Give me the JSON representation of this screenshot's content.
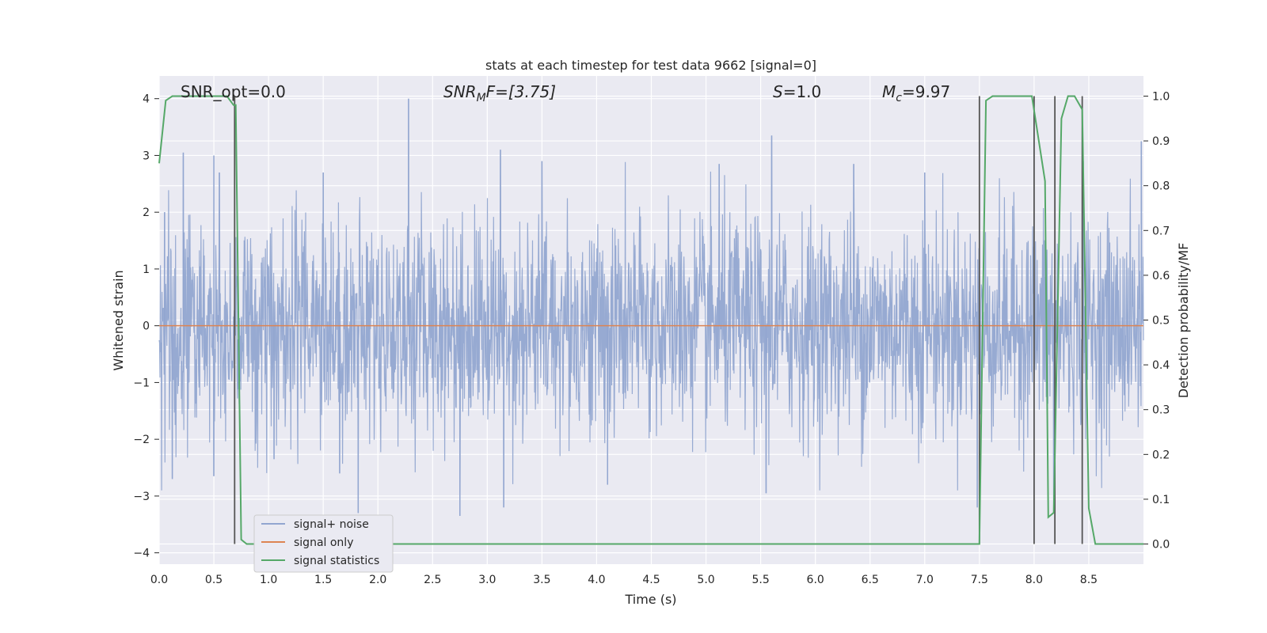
{
  "chart_data": {
    "type": "line",
    "title": "stats at each timestep for test data 9662 [signal=0]",
    "xlabel": "Time (s)",
    "ylabel": "Whitened strain",
    "y2label": "Detection probability/MF",
    "xlim": [
      0.0,
      9.0
    ],
    "ylim": [
      -4.2,
      4.4
    ],
    "y2lim": [
      -0.045,
      1.045
    ],
    "x_ticks": [
      0.0,
      0.5,
      1.0,
      1.5,
      2.0,
      2.5,
      3.0,
      3.5,
      4.0,
      4.5,
      5.0,
      5.5,
      6.0,
      6.5,
      7.0,
      7.5,
      8.0,
      8.5
    ],
    "x_tick_labels": [
      "0.0",
      "0.5",
      "1.0",
      "1.5",
      "2.0",
      "2.5",
      "3.0",
      "3.5",
      "4.0",
      "4.5",
      "5.0",
      "5.5",
      "6.0",
      "6.5",
      "7.0",
      "7.5",
      "8.0",
      "8.5"
    ],
    "y_ticks": [
      4,
      3,
      2,
      1,
      0,
      -1,
      -2,
      -3,
      -4
    ],
    "y_tick_labels": [
      "4",
      "3",
      "2",
      "1",
      "0",
      "−1",
      "−2",
      "−3",
      "−4"
    ],
    "y2_ticks": [
      1.0,
      0.9,
      0.8,
      0.7,
      0.6,
      0.5,
      0.4,
      0.3,
      0.2,
      0.1,
      0.0
    ],
    "y2_tick_labels": [
      "1.0",
      "0.9",
      "0.8",
      "0.7",
      "0.6",
      "0.5",
      "0.4",
      "0.3",
      "0.2",
      "0.1",
      "0.0"
    ],
    "grid": true,
    "legend_position": "lower-left",
    "annotations": {
      "snr_opt": "SNR_opt=0.0",
      "snr_mf_label": "SNR",
      "snr_mf_sub": "M",
      "snr_mf_rest": "F=[3.75]",
      "s_label": "S",
      "s_value": "=1.0",
      "mc_label": "M",
      "mc_sub": "c",
      "mc_value": "=9.97"
    },
    "series": [
      {
        "name": "signal+ noise",
        "color": "#92a6d0",
        "kind": "noise",
        "envelope_typical": [
          -1.5,
          1.6
        ],
        "spikes": [
          {
            "x": 0.05,
            "y": 2.0
          },
          {
            "x": 0.22,
            "y": 3.05
          },
          {
            "x": 0.5,
            "y": 3.0
          },
          {
            "x": 0.55,
            "y": 2.7
          },
          {
            "x": 0.12,
            "y": -2.7
          },
          {
            "x": 0.5,
            "y": -2.65
          },
          {
            "x": 1.05,
            "y": -2.35
          },
          {
            "x": 1.5,
            "y": 2.7
          },
          {
            "x": 1.65,
            "y": -2.6
          },
          {
            "x": 1.82,
            "y": -3.3
          },
          {
            "x": 2.28,
            "y": 4.0
          },
          {
            "x": 2.75,
            "y": -3.35
          },
          {
            "x": 3.12,
            "y": 3.1
          },
          {
            "x": 3.15,
            "y": -3.2
          },
          {
            "x": 3.5,
            "y": 2.9
          },
          {
            "x": 4.1,
            "y": -2.8
          },
          {
            "x": 5.12,
            "y": 2.85
          },
          {
            "x": 5.6,
            "y": 3.35
          },
          {
            "x": 5.55,
            "y": -2.95
          },
          {
            "x": 6.35,
            "y": 2.85
          },
          {
            "x": 7.0,
            "y": 2.7
          },
          {
            "x": 7.48,
            "y": -3.2
          },
          {
            "x": 8.18,
            "y": -3.25
          },
          {
            "x": 8.45,
            "y": 2.9
          },
          {
            "x": 8.98,
            "y": 3.25
          }
        ]
      },
      {
        "name": "signal only",
        "color": "#dd8452",
        "kind": "flat",
        "value": 0.0
      },
      {
        "name": "signal statistics",
        "color": "#55a868",
        "kind": "line",
        "axis": "right",
        "x": [
          0.0,
          0.06,
          0.12,
          0.25,
          0.4,
          0.55,
          0.62,
          0.68,
          0.7,
          0.75,
          0.8,
          0.9,
          1.5,
          2.5,
          3.5,
          4.5,
          5.5,
          6.5,
          7.0,
          7.4,
          7.5,
          7.56,
          7.62,
          7.7,
          7.85,
          7.98,
          8.1,
          8.13,
          8.18,
          8.25,
          8.31,
          8.37,
          8.44,
          8.5,
          8.56,
          8.7,
          8.9,
          9.0
        ],
        "y": [
          0.85,
          0.99,
          1.0,
          1.0,
          1.0,
          1.0,
          1.0,
          0.98,
          0.98,
          0.01,
          0.0,
          0.0,
          0.0,
          0.0,
          0.0,
          0.0,
          0.0,
          0.0,
          0.0,
          0.0,
          0.0,
          0.99,
          1.0,
          1.0,
          1.0,
          1.0,
          0.81,
          0.06,
          0.07,
          0.95,
          1.0,
          1.0,
          0.97,
          0.08,
          0.0,
          0.0,
          0.0,
          0.0
        ]
      }
    ],
    "vlines": [
      0.69,
      7.5,
      8.0,
      8.19,
      8.44
    ],
    "vline_color": "#555555",
    "vline_range": [
      0.0,
      1.0
    ]
  }
}
